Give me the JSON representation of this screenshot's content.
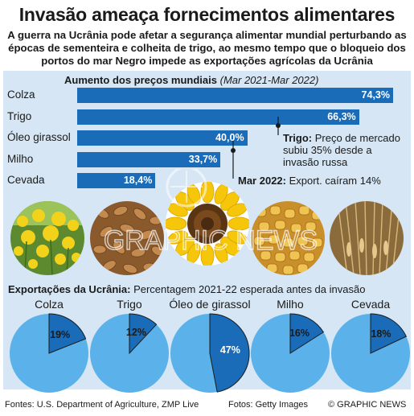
{
  "header": {
    "title": "Invasão ameaça fornecimentos alimentares",
    "subtitle": "A guerra  na Ucrânia pode afetar a segurança alimentar mundial perturbando as épocas de sementeira e colheita de trigo, ao mesmo tempo que o bloqueio dos portos do mar Negro impede as exportações agrícolas da Ucrânia"
  },
  "prices": {
    "title": "Aumento dos preços mundiais",
    "period": "(Mar 2021-Mar 2022)",
    "value_labels": [
      "74,3%",
      "66,3%",
      "40,0%",
      "33,7%",
      "18,4%"
    ]
  },
  "annotations": {
    "trigo_head": "Trigo:",
    "trigo_l1": " Preço de mercado",
    "trigo_l2": "subiu 35% desde a",
    "trigo_l3": "invasão russa",
    "mar_head": "Mar 2022:",
    "mar_text": " Export. caíram 14%"
  },
  "exports": {
    "title": "Exportações da Ucrânia:",
    "note": " Percentagem 2021-22 esperada antes da invasão",
    "labels": [
      "Colza",
      "Trigo",
      "Óleo de girassol",
      "Milho",
      "Cevada"
    ],
    "value_labels": [
      "19%",
      "12%",
      "47%",
      "16%",
      "18%"
    ]
  },
  "footer": {
    "sources": "Fontes: U.S. Department of Agriculture, ZMP Live",
    "photos": "Fotos: Getty Images",
    "credit": "© GRAPHIC NEWS"
  },
  "watermark": "GRAPHIC NEWS",
  "colors": {
    "bar": "#1b6cb8",
    "pie_light": "#5bb2ea",
    "pie_dark": "#1b6cb8",
    "panel": "#d6e6f4"
  },
  "chart_data": [
    {
      "type": "bar",
      "orientation": "horizontal",
      "title": "Aumento dos preços mundiais",
      "subtitle": "(Mar 2021-Mar 2022)",
      "categories": [
        "Colza",
        "Trigo",
        "Óleo girassol",
        "Milho",
        "Cevada"
      ],
      "values": [
        74.3,
        66.3,
        40.0,
        33.7,
        18.4
      ],
      "unit": "%"
    },
    {
      "type": "pie",
      "title": "Exportações da Ucrânia",
      "subtitle": "Percentagem 2021-22 esperada antes da invasão",
      "categories": [
        "Colza",
        "Trigo",
        "Óleo de girassol",
        "Milho",
        "Cevada"
      ],
      "values": [
        19,
        12,
        47,
        16,
        18
      ],
      "unit": "%"
    }
  ]
}
